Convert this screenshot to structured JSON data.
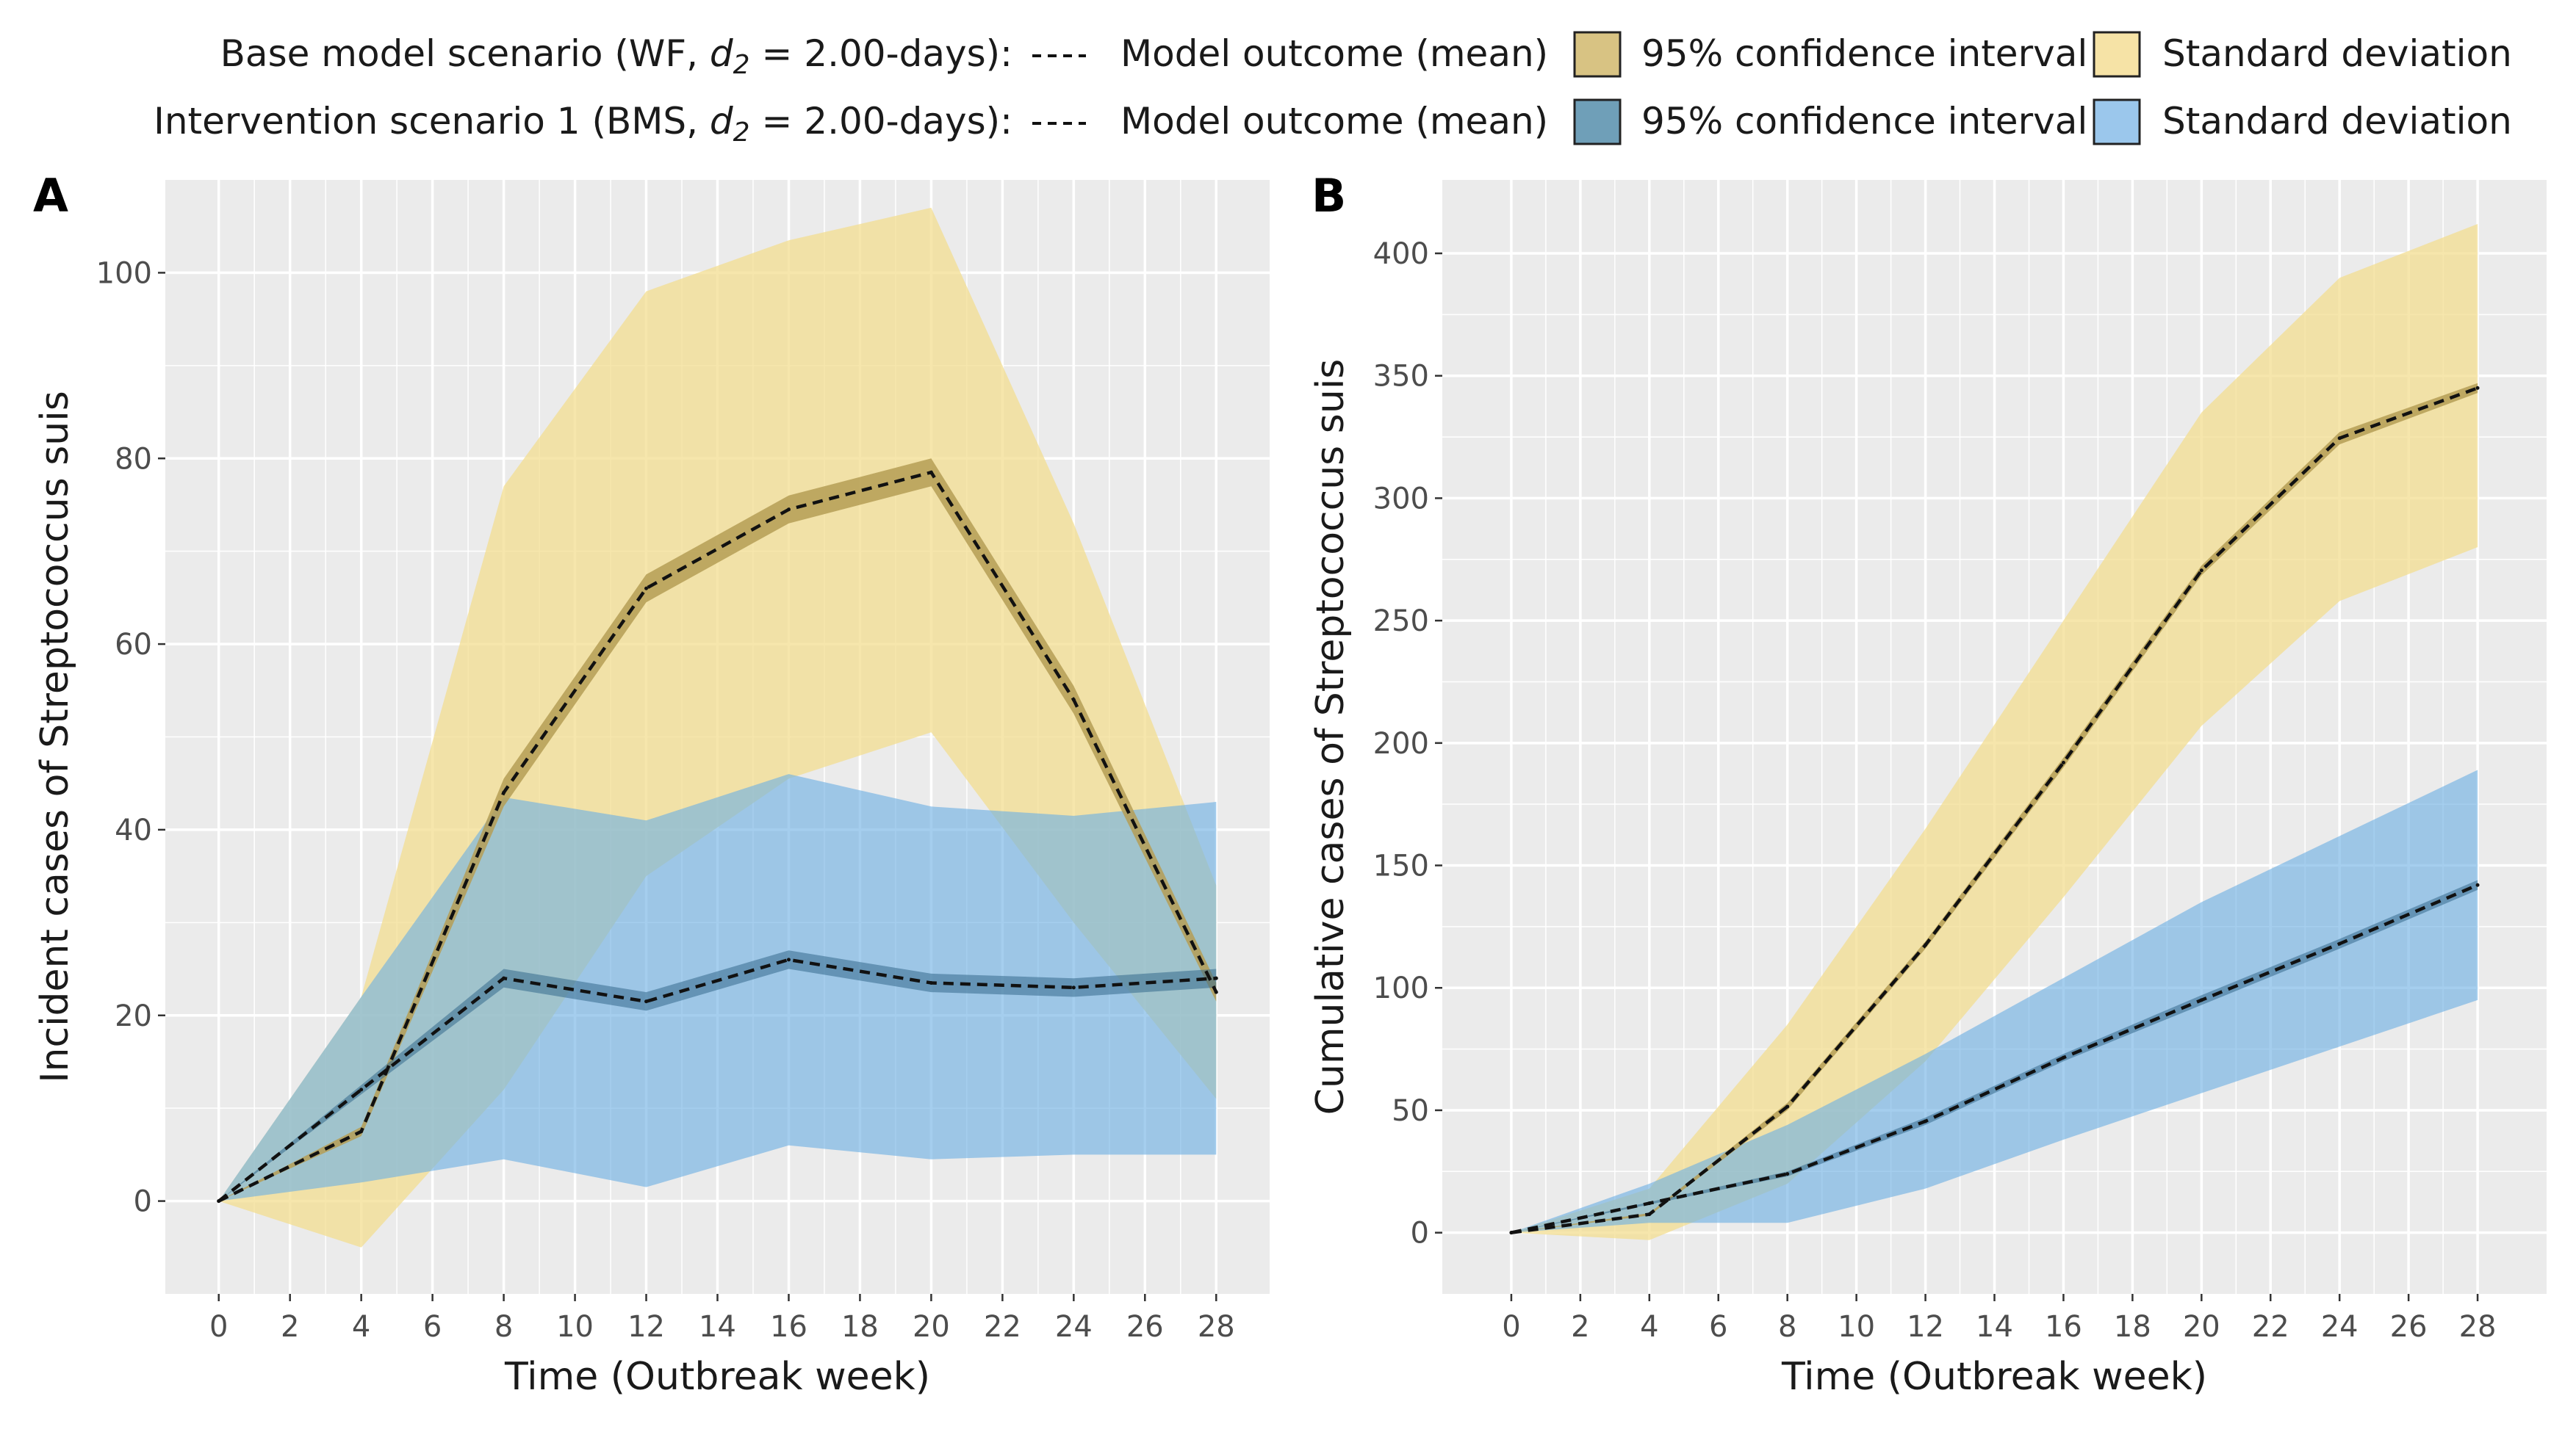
{
  "legend": {
    "base": {
      "label_pre": "Base model scenario (WF, ",
      "d_symbol": "d",
      "d_sub": "2",
      "label_post": " = 2.00-days):",
      "mean_label": "Model outcome (mean)",
      "ci_label": "95% confidence interval",
      "sd_label": "Standard deviation"
    },
    "intervention": {
      "label_pre": "Intervention scenario 1 (BMS, ",
      "d_symbol": "d",
      "d_sub": "2",
      "label_post": " = 2.00-days):",
      "mean_label": "Model outcome (mean)",
      "ci_label": "95% confidence interval",
      "sd_label": "Standard deviation"
    }
  },
  "colors": {
    "panel_bg": "#ebebeb",
    "grid": "#ffffff",
    "base_sd": "#f3dc8c",
    "base_ci": "#b59d55",
    "base_ci_legend": "#d8c383",
    "base_sd_legend": "#f6e3a6",
    "int_sd": "#6eb0e3",
    "int_ci": "#35698c",
    "int_ci_legend": "#6f9fb8",
    "int_sd_legend": "#9bc7ec",
    "mean_line": "#111111"
  },
  "chart_data": [
    {
      "type": "area",
      "panel_label": "A",
      "xlabel": "Time (Outbreak week)",
      "ylabel": "Incident cases of Streptococcus suis",
      "xlim": [
        -1.5,
        29.5
      ],
      "ylim": [
        -10,
        110
      ],
      "x_ticks": [
        0,
        2,
        4,
        6,
        8,
        10,
        12,
        14,
        16,
        18,
        20,
        22,
        24,
        26,
        28
      ],
      "y_ticks": [
        0,
        20,
        40,
        60,
        80,
        100
      ],
      "x": [
        0,
        4,
        8,
        12,
        16,
        20,
        24,
        28
      ],
      "series": [
        {
          "name": "Base model scenario (WF)",
          "mean": [
            0,
            7.5,
            44,
            66,
            74.5,
            78.5,
            54,
            22.5
          ],
          "ci_lower": [
            0,
            7,
            42.5,
            64.5,
            73,
            77,
            52.5,
            21.5
          ],
          "ci_upper": [
            0,
            8,
            45.5,
            67.5,
            76,
            80,
            55.5,
            23.5
          ],
          "sd_lower": [
            0,
            -5,
            12,
            35,
            45.5,
            50.5,
            30,
            11
          ],
          "sd_upper": [
            0,
            22,
            77,
            98,
            103.5,
            107,
            73,
            34
          ]
        },
        {
          "name": "Intervention scenario 1 (BMS)",
          "mean": [
            0,
            12,
            24,
            21.5,
            26,
            23.5,
            23,
            24
          ],
          "ci_lower": [
            0,
            11.5,
            23,
            20.5,
            25,
            22.5,
            22,
            23
          ],
          "ci_upper": [
            0,
            12.5,
            25,
            22.5,
            27,
            24.5,
            24,
            25
          ],
          "sd_lower": [
            0,
            2,
            4.5,
            1.5,
            6,
            4.5,
            5,
            5
          ],
          "sd_upper": [
            0,
            22,
            43.5,
            41,
            46,
            42.5,
            41.5,
            43
          ]
        }
      ]
    },
    {
      "type": "area",
      "panel_label": "B",
      "xlabel": "Time (Outbreak week)",
      "ylabel": "Cumulative cases of Streptococcus suis",
      "xlim": [
        -2,
        30
      ],
      "ylim": [
        -25,
        430
      ],
      "x_ticks": [
        0,
        2,
        4,
        6,
        8,
        10,
        12,
        14,
        16,
        18,
        20,
        22,
        24,
        26,
        28
      ],
      "y_ticks": [
        0,
        50,
        100,
        150,
        200,
        250,
        300,
        350,
        400
      ],
      "x": [
        0,
        4,
        8,
        12,
        16,
        20,
        24,
        28
      ],
      "series": [
        {
          "name": "Base model scenario (WF)",
          "mean": [
            0,
            7.5,
            51.5,
            117.5,
            192,
            270.5,
            324.5,
            345
          ],
          "ci_lower": [
            0,
            7,
            50,
            116,
            190,
            268.5,
            322,
            343
          ],
          "ci_upper": [
            0,
            8,
            53,
            119,
            194,
            272.5,
            327,
            347
          ],
          "sd_lower": [
            0,
            -3,
            20,
            70,
            137,
            207,
            258,
            280
          ],
          "sd_upper": [
            0,
            18,
            85,
            165,
            250,
            335,
            390,
            412
          ]
        },
        {
          "name": "Intervention scenario 1 (BMS)",
          "mean": [
            0,
            12,
            24,
            45.5,
            71.5,
            95,
            118,
            142
          ],
          "ci_lower": [
            0,
            11.5,
            23,
            44,
            70,
            93,
            116,
            140
          ],
          "ci_upper": [
            0,
            12.5,
            25,
            47,
            73,
            97,
            120,
            144
          ],
          "sd_lower": [
            0,
            4,
            4,
            18,
            38,
            57,
            76,
            95
          ],
          "sd_upper": [
            0,
            20,
            44,
            73,
            104,
            135,
            162,
            189
          ]
        }
      ]
    }
  ]
}
